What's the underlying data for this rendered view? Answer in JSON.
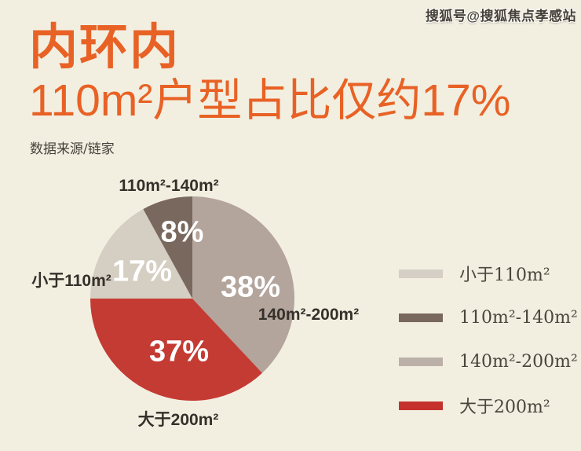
{
  "page": {
    "background_color": "#f2efe1",
    "accent_color": "#e86225"
  },
  "watermark": {
    "text": "搜狐号@搜狐焦点孝感站"
  },
  "header": {
    "title": "内环内",
    "subtitle": "110m²户型占比仅约17%",
    "source": "数据来源/链家"
  },
  "chart_data": {
    "type": "pie",
    "title": "内环内110m²户型占比仅约17%",
    "source_note": "数据来源/链家",
    "direction": "clockwise",
    "start_angle_deg": 0,
    "legend_position": "right",
    "categories": [
      "140m²-200m²",
      "大于200m²",
      "小于110m²",
      "110m²-140m²"
    ],
    "values": [
      38,
      37,
      17,
      8
    ],
    "slices": [
      {
        "key": "140-200",
        "label": "140m²-200m²",
        "value": 38,
        "pct": "38%",
        "color": "#b3a49c"
      },
      {
        "key": "gt-200",
        "label": "大于200m²",
        "value": 37,
        "pct": "37%",
        "color": "#c43b33"
      },
      {
        "key": "lt-110",
        "label": "小于110m²",
        "value": 17,
        "pct": "17%",
        "color": "#d5cec2"
      },
      {
        "key": "110-140",
        "label": "110m²-140m²",
        "value": 8,
        "pct": "8%",
        "color": "#79685d"
      }
    ],
    "legend": [
      {
        "key": "lt-110",
        "label": "小于110m²",
        "color": "#d6cfc5"
      },
      {
        "key": "110-140",
        "label": "110m²-140m²",
        "color": "#79685d"
      },
      {
        "key": "140-200",
        "label": "140m²-200m²",
        "color": "#bcb1a9"
      },
      {
        "key": "gt-200",
        "label": "大于200m²",
        "color": "#c5322d"
      }
    ]
  }
}
